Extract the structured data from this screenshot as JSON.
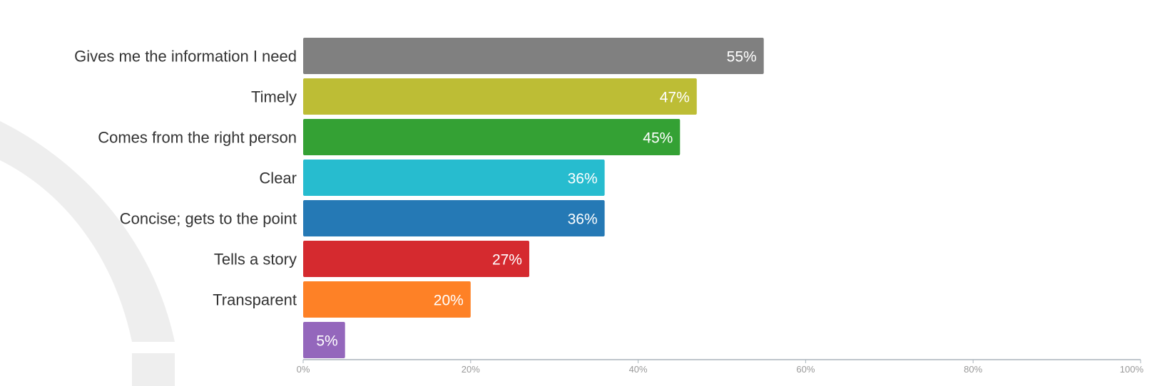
{
  "chart_data": {
    "type": "bar",
    "orientation": "horizontal",
    "categories": [
      "Gives me the information I need",
      "Timely",
      "Comes from the right person",
      "Clear",
      "Concise; gets to the point",
      "Tells a story",
      "Transparent",
      ""
    ],
    "values": [
      55,
      47,
      45,
      36,
      36,
      27,
      20,
      5
    ],
    "value_labels": [
      "55%",
      "47%",
      "45%",
      "36%",
      "36%",
      "27%",
      "20%",
      "5%"
    ],
    "colors": [
      "#808080",
      "#bdbd35",
      "#34a134",
      "#27bccf",
      "#2579b5",
      "#d52a2f",
      "#fe8126",
      "#9467bc"
    ],
    "xlim": [
      0,
      100
    ],
    "x_ticks": [
      "0%",
      "20%",
      "40%",
      "60%",
      "80%",
      "100%"
    ],
    "x_tick_values": [
      0,
      20,
      40,
      60,
      80,
      100
    ],
    "grid": false,
    "title": "",
    "xlabel": "",
    "ylabel": ""
  },
  "style": {
    "label_color": "#333333",
    "data_label_color": "#ffffff",
    "axis_color": "#aab4bb",
    "tick_color": "#999999",
    "watermark_color": "#eeeeee"
  }
}
